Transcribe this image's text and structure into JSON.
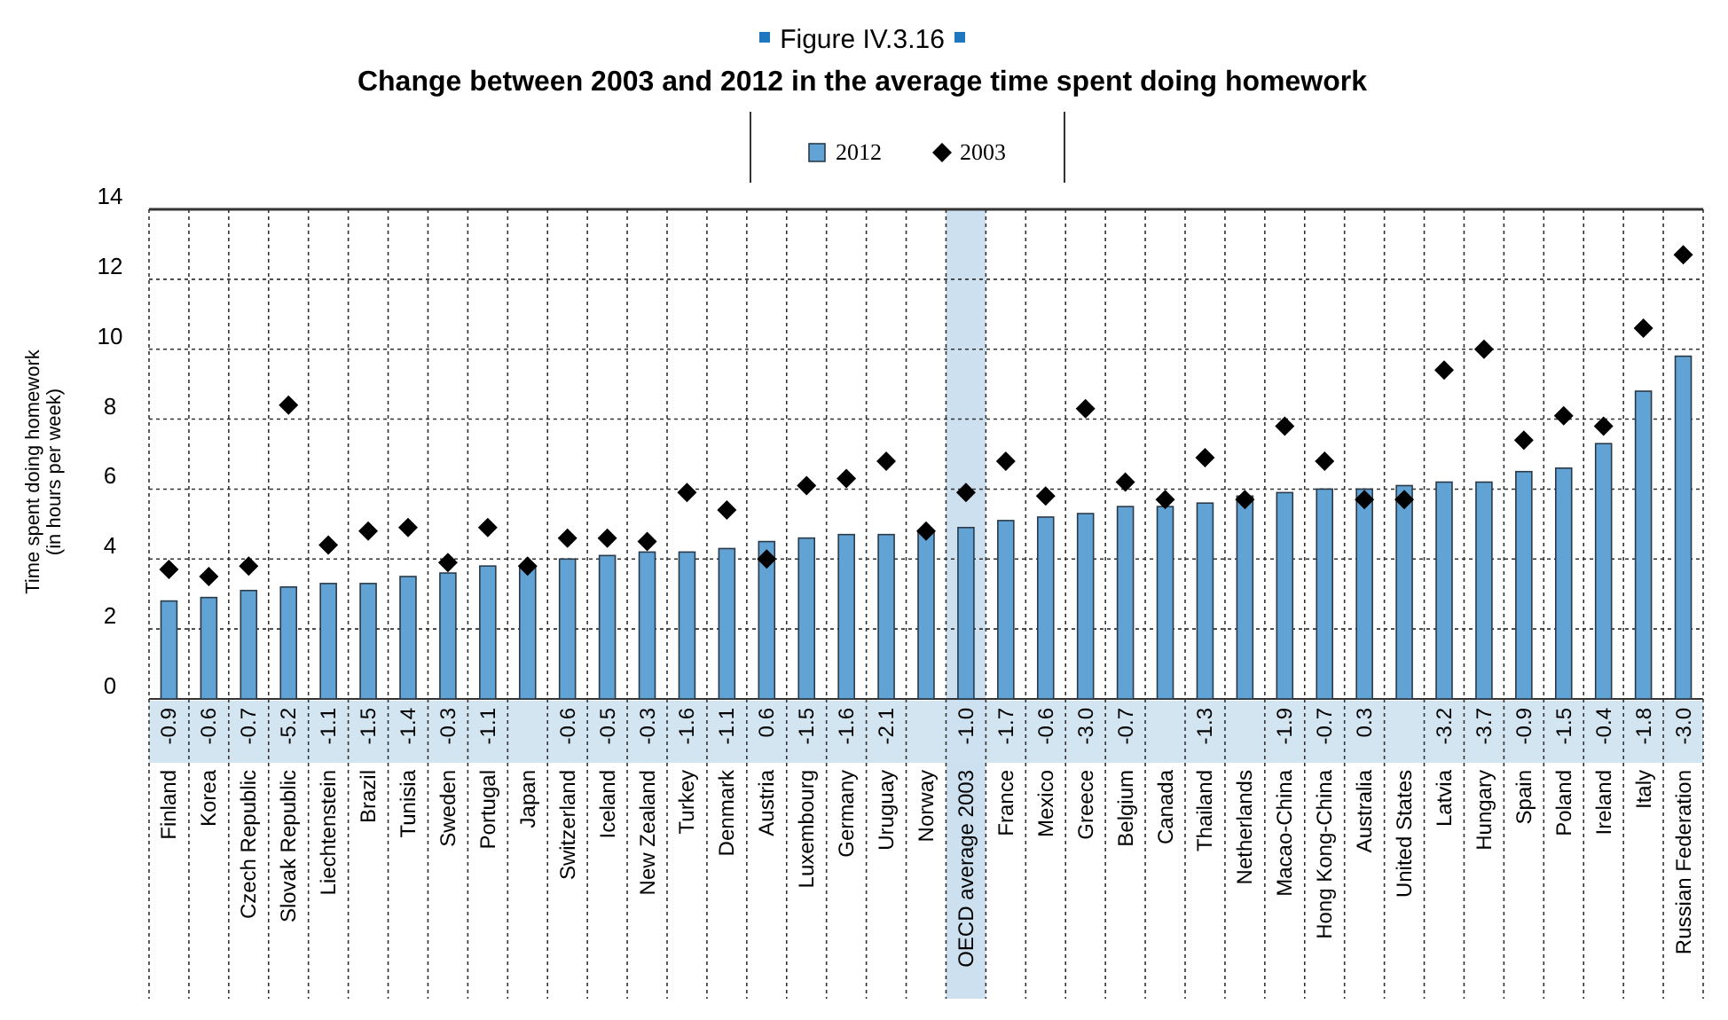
{
  "chart_data": {
    "type": "bar",
    "title": "Figure IV.3.16",
    "subtitle": "Change between 2003 and 2012 in the average time spent doing homework",
    "ylabel": "Time spent doing homework (in hours per week)",
    "categories": [
      "Finland",
      "Korea",
      "Czech Republic",
      "Slovak Republic",
      "Liechtenstein",
      "Brazil",
      "Tunisia",
      "Sweden",
      "Portugal",
      "Japan",
      "Switzerland",
      "Iceland",
      "New Zealand",
      "Turkey",
      "Denmark",
      "Austria",
      "Luxembourg",
      "Germany",
      "Uruguay",
      "Norway",
      "OECD average 2003",
      "France",
      "Mexico",
      "Greece",
      "Belgium",
      "Canada",
      "Thailand",
      "Netherlands",
      "Macao-China",
      "Hong Kong-China",
      "Australia",
      "United States",
      "Latvia",
      "Hungary",
      "Spain",
      "Poland",
      "Ireland",
      "Italy",
      "Russian Federation"
    ],
    "series": [
      {
        "name": "2012",
        "color": "#62a3d5",
        "values": [
          2.8,
          2.9,
          3.1,
          3.2,
          3.3,
          3.3,
          3.5,
          3.6,
          3.8,
          3.8,
          4.0,
          4.1,
          4.2,
          4.2,
          4.3,
          4.5,
          4.6,
          4.7,
          4.7,
          4.8,
          4.9,
          5.1,
          5.2,
          5.3,
          5.5,
          5.5,
          5.6,
          5.8,
          5.9,
          6.0,
          6.0,
          6.1,
          6.2,
          6.2,
          6.5,
          6.6,
          7.3,
          8.8,
          9.8
        ]
      },
      {
        "name": "2003",
        "type": "scatter",
        "color": "#000000",
        "values": [
          3.7,
          3.5,
          3.8,
          8.4,
          4.4,
          4.8,
          4.9,
          3.9,
          4.9,
          3.8,
          4.6,
          4.6,
          4.5,
          5.9,
          5.4,
          4.0,
          6.1,
          6.3,
          6.8,
          4.8,
          5.9,
          6.8,
          5.8,
          8.3,
          6.2,
          5.7,
          6.9,
          5.7,
          7.8,
          6.8,
          5.7,
          5.7,
          9.4,
          10.0,
          7.4,
          8.1,
          7.8,
          10.6,
          12.7
        ]
      }
    ],
    "marker": "diamond",
    "ylim": [
      0,
      14
    ],
    "yticks": [
      0,
      2,
      4,
      6,
      8,
      10,
      12,
      14
    ],
    "grid": true,
    "legend": "top",
    "bands": [
      {
        "axis": "x",
        "from": "OECD average 2003",
        "to": "OECD average 2003",
        "color": "#cde0f0"
      }
    ],
    "annotations": [
      "-0.9",
      "-0.6",
      "-0.7",
      "-5.2",
      "-1.1",
      "-1.5",
      "-1.4",
      "-0.3",
      "-1.1",
      null,
      "-0.6",
      "-0.5",
      "-0.3",
      "-1.6",
      "-1.1",
      "0.6",
      "-1.5",
      "-1.6",
      "-2.1",
      null,
      "-1.0",
      "-1.7",
      "-0.6",
      "-3.0",
      "-0.7",
      null,
      "-1.3",
      null,
      "-1.9",
      "-0.7",
      "0.3",
      null,
      "-3.2",
      "-3.7",
      "-0.9",
      "-1.5",
      "-0.4",
      "-1.8",
      "-3.0"
    ]
  }
}
